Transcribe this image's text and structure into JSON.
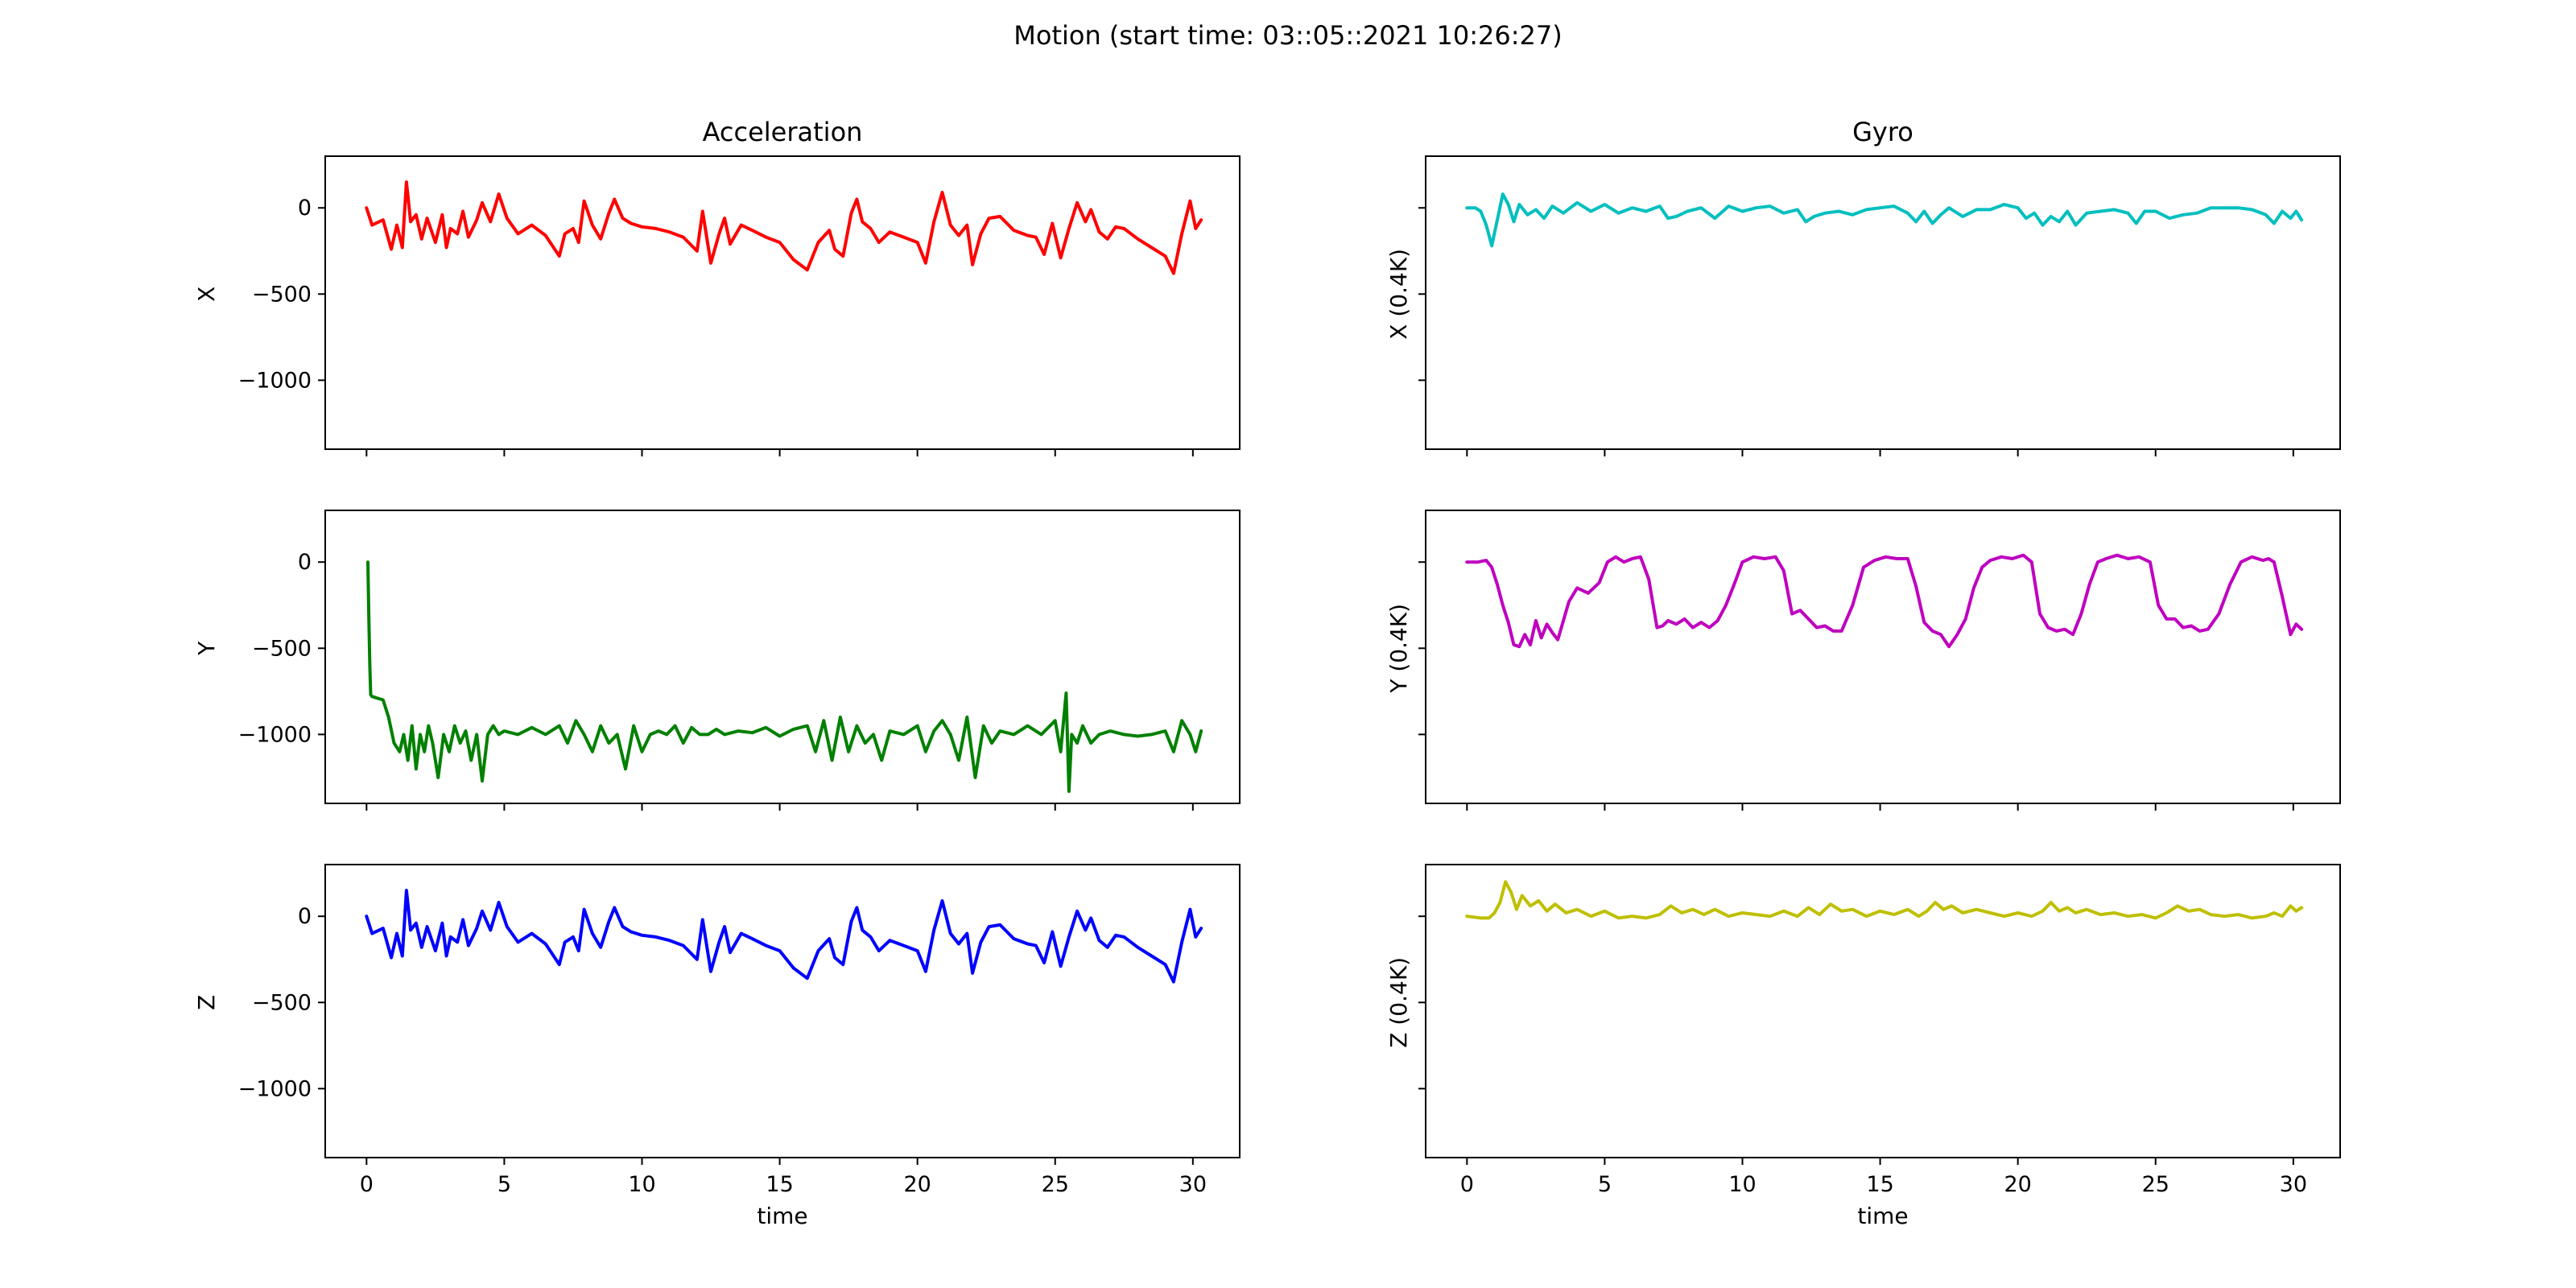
{
  "figure": {
    "suptitle": "Motion (start time: 03::05::2021 10:26:27)",
    "column_titles": [
      "Acceleration",
      "Gyro"
    ],
    "xlabel": "time"
  },
  "chart_data": [
    {
      "type": "line",
      "panel": "acc-x",
      "ylabel": "X",
      "color": "#ff0000",
      "xlim": [
        -1.5,
        31.7
      ],
      "ylim": [
        -1400,
        300
      ],
      "xticks": [
        0,
        5,
        10,
        15,
        20,
        25,
        30
      ],
      "yticks": [
        0,
        -500,
        -1000
      ],
      "ytick_labels": [
        "0",
        "−500",
        "−1000"
      ],
      "show_xtick_labels": false,
      "x": [
        0,
        0.2,
        0.6,
        0.9,
        1.1,
        1.3,
        1.45,
        1.6,
        1.8,
        2.0,
        2.2,
        2.5,
        2.75,
        2.9,
        3.05,
        3.3,
        3.5,
        3.7,
        4.0,
        4.2,
        4.5,
        4.8,
        5.1,
        5.5,
        6.0,
        6.5,
        7.0,
        7.2,
        7.5,
        7.7,
        7.9,
        8.2,
        8.5,
        8.8,
        9.0,
        9.3,
        9.6,
        10.0,
        10.5,
        11.0,
        11.5,
        12.0,
        12.2,
        12.5,
        12.8,
        13.0,
        13.2,
        13.6,
        14.0,
        14.5,
        15.0,
        15.5,
        16.0,
        16.4,
        16.8,
        17.0,
        17.3,
        17.6,
        17.8,
        18.0,
        18.3,
        18.6,
        19.0,
        19.5,
        20.0,
        20.3,
        20.6,
        20.9,
        21.2,
        21.5,
        21.8,
        22.0,
        22.3,
        22.6,
        23.0,
        23.5,
        24.0,
        24.3,
        24.6,
        24.9,
        25.2,
        25.5,
        25.8,
        26.1,
        26.3,
        26.6,
        26.9,
        27.2,
        27.5,
        28.0,
        28.5,
        29.0,
        29.3,
        29.6,
        29.9,
        30.1,
        30.3
      ],
      "y": [
        0,
        -100,
        -70,
        -240,
        -100,
        -230,
        150,
        -80,
        -40,
        -180,
        -60,
        -200,
        -40,
        -230,
        -120,
        -150,
        -20,
        -170,
        -70,
        30,
        -80,
        80,
        -60,
        -150,
        -100,
        -160,
        -280,
        -150,
        -120,
        -200,
        40,
        -100,
        -180,
        -30,
        50,
        -60,
        -90,
        -110,
        -120,
        -140,
        -170,
        -250,
        -20,
        -320,
        -150,
        -60,
        -210,
        -100,
        -130,
        -170,
        -200,
        -300,
        -360,
        -200,
        -130,
        -240,
        -280,
        -30,
        50,
        -80,
        -120,
        -200,
        -140,
        -170,
        -200,
        -320,
        -80,
        90,
        -100,
        -160,
        -100,
        -330,
        -150,
        -60,
        -50,
        -130,
        -160,
        -170,
        -270,
        -90,
        -290,
        -120,
        30,
        -80,
        -10,
        -140,
        -180,
        -110,
        -120,
        -180,
        -230,
        -280,
        -380,
        -150,
        40,
        -120,
        -70
      ]
    },
    {
      "type": "line",
      "panel": "acc-y",
      "ylabel": "Y",
      "color": "#008000",
      "xlim": [
        -1.5,
        31.7
      ],
      "ylim": [
        -1400,
        300
      ],
      "xticks": [
        0,
        5,
        10,
        15,
        20,
        25,
        30
      ],
      "yticks": [
        0,
        -500,
        -1000
      ],
      "ytick_labels": [
        "0",
        "−500",
        "−1000"
      ],
      "show_xtick_labels": false,
      "x": [
        0.05,
        0.08,
        0.12,
        0.15,
        0.2,
        0.4,
        0.6,
        0.8,
        1.0,
        1.2,
        1.35,
        1.5,
        1.65,
        1.8,
        1.95,
        2.1,
        2.25,
        2.4,
        2.6,
        2.8,
        3.0,
        3.2,
        3.4,
        3.6,
        3.8,
        4.0,
        4.2,
        4.4,
        4.6,
        4.8,
        5.0,
        5.5,
        6.0,
        6.5,
        7.0,
        7.3,
        7.6,
        7.9,
        8.2,
        8.5,
        8.8,
        9.1,
        9.4,
        9.7,
        10.0,
        10.3,
        10.6,
        10.9,
        11.2,
        11.5,
        11.8,
        12.1,
        12.4,
        12.7,
        13.0,
        13.5,
        14.0,
        14.5,
        15.0,
        15.5,
        16.0,
        16.3,
        16.6,
        16.9,
        17.2,
        17.5,
        17.8,
        18.1,
        18.4,
        18.7,
        19.0,
        19.5,
        20.0,
        20.3,
        20.6,
        20.9,
        21.2,
        21.5,
        21.8,
        22.1,
        22.4,
        22.7,
        23.0,
        23.5,
        24.0,
        24.5,
        25.0,
        25.2,
        25.4,
        25.5,
        25.6,
        25.8,
        26.0,
        26.3,
        26.6,
        27.0,
        27.5,
        28.0,
        28.5,
        29.0,
        29.3,
        29.6,
        29.9,
        30.1,
        30.3
      ],
      "y": [
        0,
        -300,
        -600,
        -770,
        -780,
        -790,
        -800,
        -900,
        -1050,
        -1100,
        -1000,
        -1150,
        -950,
        -1200,
        -1000,
        -1100,
        -950,
        -1050,
        -1250,
        -1000,
        -1100,
        -950,
        -1050,
        -980,
        -1150,
        -1000,
        -1270,
        -1000,
        -950,
        -1000,
        -980,
        -1000,
        -960,
        -1000,
        -950,
        -1050,
        -920,
        -1000,
        -1100,
        -950,
        -1050,
        -1000,
        -1200,
        -950,
        -1100,
        -1000,
        -980,
        -1000,
        -950,
        -1050,
        -960,
        -1000,
        -1000,
        -970,
        -1000,
        -980,
        -990,
        -960,
        -1010,
        -970,
        -950,
        -1100,
        -920,
        -1150,
        -900,
        -1100,
        -950,
        -1050,
        -1000,
        -1150,
        -980,
        -1000,
        -950,
        -1100,
        -980,
        -920,
        -1000,
        -1150,
        -900,
        -1250,
        -950,
        -1050,
        -980,
        -1000,
        -950,
        -1000,
        -920,
        -1100,
        -760,
        -1330,
        -1000,
        -1050,
        -950,
        -1050,
        -1000,
        -980,
        -1000,
        -1010,
        -1000,
        -980,
        -1100,
        -920,
        -1000,
        -1100,
        -980
      ]
    },
    {
      "type": "line",
      "panel": "acc-z",
      "ylabel": "Z",
      "color": "#0000ff",
      "xlim": [
        -1.5,
        31.7
      ],
      "ylim": [
        -1400,
        300
      ],
      "xticks": [
        0,
        5,
        10,
        15,
        20,
        25,
        30
      ],
      "yticks": [
        0,
        -500,
        -1000
      ],
      "ytick_labels": [
        "0",
        "−500",
        "−1000"
      ],
      "show_xtick_labels": true,
      "x": [
        0,
        0.2,
        0.6,
        0.9,
        1.1,
        1.3,
        1.45,
        1.6,
        1.8,
        2.0,
        2.2,
        2.5,
        2.75,
        2.9,
        3.05,
        3.3,
        3.5,
        3.7,
        4.0,
        4.2,
        4.5,
        4.8,
        5.1,
        5.5,
        6.0,
        6.5,
        7.0,
        7.2,
        7.5,
        7.7,
        7.9,
        8.2,
        8.5,
        8.8,
        9.0,
        9.3,
        9.6,
        10.0,
        10.5,
        11.0,
        11.5,
        12.0,
        12.2,
        12.5,
        12.8,
        13.0,
        13.2,
        13.6,
        14.0,
        14.5,
        15.0,
        15.5,
        16.0,
        16.4,
        16.8,
        17.0,
        17.3,
        17.6,
        17.8,
        18.0,
        18.3,
        18.6,
        19.0,
        19.5,
        20.0,
        20.3,
        20.6,
        20.9,
        21.2,
        21.5,
        21.8,
        22.0,
        22.3,
        22.6,
        23.0,
        23.5,
        24.0,
        24.3,
        24.6,
        24.9,
        25.2,
        25.5,
        25.8,
        26.1,
        26.3,
        26.6,
        26.9,
        27.2,
        27.5,
        28.0,
        28.5,
        29.0,
        29.3,
        29.6,
        29.9,
        30.1,
        30.3
      ],
      "y": [
        0,
        -100,
        -70,
        -240,
        -100,
        -230,
        150,
        -80,
        -40,
        -180,
        -60,
        -200,
        -40,
        -230,
        -120,
        -150,
        -20,
        -170,
        -70,
        30,
        -80,
        80,
        -60,
        -150,
        -100,
        -160,
        -280,
        -150,
        -120,
        -200,
        40,
        -100,
        -180,
        -30,
        50,
        -60,
        -90,
        -110,
        -120,
        -140,
        -170,
        -250,
        -20,
        -320,
        -150,
        -60,
        -210,
        -100,
        -130,
        -170,
        -200,
        -300,
        -360,
        -200,
        -130,
        -240,
        -280,
        -30,
        50,
        -80,
        -120,
        -200,
        -140,
        -170,
        -200,
        -320,
        -80,
        90,
        -100,
        -160,
        -100,
        -330,
        -150,
        -60,
        -50,
        -130,
        -160,
        -170,
        -270,
        -90,
        -290,
        -120,
        30,
        -80,
        -10,
        -140,
        -180,
        -110,
        -120,
        -180,
        -230,
        -280,
        -380,
        -150,
        40,
        -120,
        -70
      ]
    },
    {
      "type": "line",
      "panel": "gyro-x",
      "ylabel": "X (0.4K)",
      "color": "#00bfbf",
      "xlim": [
        -1.5,
        31.7
      ],
      "ylim": [
        -1400,
        300
      ],
      "xticks": [
        0,
        5,
        10,
        15,
        20,
        25,
        30
      ],
      "yticks": [
        0,
        -500,
        -1000
      ],
      "ytick_labels": [
        "",
        "",
        ""
      ],
      "show_xtick_labels": false,
      "x": [
        0,
        0.3,
        0.5,
        0.7,
        0.9,
        1.1,
        1.3,
        1.5,
        1.7,
        1.9,
        2.2,
        2.5,
        2.8,
        3.1,
        3.5,
        4.0,
        4.5,
        5.0,
        5.5,
        6.0,
        6.5,
        7.0,
        7.3,
        7.6,
        8.0,
        8.5,
        9.0,
        9.5,
        10.0,
        10.5,
        11.0,
        11.5,
        12.0,
        12.3,
        12.6,
        13.0,
        13.5,
        14.0,
        14.5,
        15.0,
        15.5,
        16.0,
        16.3,
        16.6,
        16.9,
        17.2,
        17.5,
        18.0,
        18.5,
        19.0,
        19.5,
        20.0,
        20.3,
        20.6,
        20.9,
        21.2,
        21.5,
        21.8,
        22.1,
        22.5,
        23.0,
        23.5,
        24.0,
        24.3,
        24.6,
        25.0,
        25.5,
        26.0,
        26.5,
        27.0,
        27.5,
        28.0,
        28.5,
        29.0,
        29.3,
        29.6,
        29.9,
        30.1,
        30.3
      ],
      "y": [
        0,
        0,
        -20,
        -100,
        -220,
        -70,
        80,
        20,
        -80,
        20,
        -40,
        -10,
        -60,
        10,
        -30,
        30,
        -20,
        20,
        -30,
        0,
        -20,
        10,
        -60,
        -50,
        -20,
        0,
        -60,
        10,
        -20,
        0,
        10,
        -30,
        -10,
        -80,
        -50,
        -30,
        -20,
        -40,
        -10,
        0,
        10,
        -30,
        -80,
        -20,
        -90,
        -40,
        0,
        -50,
        -10,
        -10,
        20,
        0,
        -60,
        -30,
        -100,
        -50,
        -80,
        -20,
        -100,
        -30,
        -20,
        -10,
        -30,
        -90,
        -20,
        -20,
        -60,
        -40,
        -30,
        0,
        0,
        0,
        -10,
        -40,
        -90,
        -20,
        -60,
        -20,
        -70
      ]
    },
    {
      "type": "line",
      "panel": "gyro-y",
      "ylabel": "Y (0.4K)",
      "color": "#bf00bf",
      "xlim": [
        -1.5,
        31.7
      ],
      "ylim": [
        -1400,
        300
      ],
      "xticks": [
        0,
        5,
        10,
        15,
        20,
        25,
        30
      ],
      "yticks": [
        0,
        -500,
        -1000
      ],
      "ytick_labels": [
        "",
        "",
        ""
      ],
      "show_xtick_labels": false,
      "x": [
        0,
        0.4,
        0.7,
        0.9,
        1.1,
        1.3,
        1.5,
        1.7,
        1.9,
        2.1,
        2.3,
        2.5,
        2.7,
        2.9,
        3.1,
        3.3,
        3.5,
        3.7,
        4.0,
        4.4,
        4.8,
        5.1,
        5.4,
        5.7,
        6.0,
        6.3,
        6.6,
        6.9,
        7.1,
        7.3,
        7.6,
        7.9,
        8.2,
        8.5,
        8.8,
        9.1,
        9.4,
        9.7,
        10.0,
        10.4,
        10.8,
        11.2,
        11.5,
        11.8,
        12.1,
        12.4,
        12.7,
        13.0,
        13.3,
        13.6,
        14.0,
        14.4,
        14.8,
        15.2,
        15.6,
        16.0,
        16.3,
        16.6,
        16.9,
        17.2,
        17.5,
        17.8,
        18.1,
        18.4,
        18.7,
        19.0,
        19.4,
        19.8,
        20.2,
        20.5,
        20.8,
        21.1,
        21.4,
        21.7,
        22.0,
        22.3,
        22.6,
        22.9,
        23.2,
        23.6,
        24.0,
        24.4,
        24.8,
        25.1,
        25.4,
        25.7,
        26.0,
        26.3,
        26.6,
        26.9,
        27.3,
        27.7,
        28.1,
        28.5,
        28.9,
        29.1,
        29.3,
        29.6,
        29.9,
        30.1,
        30.3
      ],
      "y": [
        0,
        0,
        10,
        -30,
        -130,
        -250,
        -350,
        -480,
        -490,
        -420,
        -480,
        -340,
        -440,
        -360,
        -410,
        -450,
        -340,
        -230,
        -150,
        -180,
        -120,
        0,
        30,
        0,
        20,
        30,
        -100,
        -380,
        -370,
        -340,
        -360,
        -330,
        -380,
        -350,
        -380,
        -340,
        -250,
        -130,
        0,
        30,
        20,
        30,
        -50,
        -300,
        -280,
        -330,
        -380,
        -370,
        -400,
        -400,
        -250,
        -30,
        10,
        30,
        20,
        20,
        -140,
        -350,
        -400,
        -420,
        -490,
        -420,
        -330,
        -150,
        -30,
        10,
        30,
        20,
        40,
        0,
        -300,
        -380,
        -400,
        -390,
        -420,
        -300,
        -130,
        0,
        20,
        40,
        20,
        30,
        0,
        -250,
        -330,
        -330,
        -380,
        -370,
        -400,
        -390,
        -300,
        -130,
        0,
        30,
        10,
        20,
        0,
        -200,
        -420,
        -360,
        -390
      ]
    },
    {
      "type": "line",
      "panel": "gyro-z",
      "ylabel": "Z (0.4K)",
      "color": "#bfbf00",
      "xlim": [
        -1.5,
        31.7
      ],
      "ylim": [
        -1400,
        300
      ],
      "xticks": [
        0,
        5,
        10,
        15,
        20,
        25,
        30
      ],
      "yticks": [
        0,
        -500,
        -1000
      ],
      "ytick_labels": [
        "",
        "",
        ""
      ],
      "show_xtick_labels": true,
      "x": [
        0,
        0.5,
        0.8,
        1.0,
        1.2,
        1.4,
        1.6,
        1.8,
        2.0,
        2.3,
        2.6,
        2.9,
        3.2,
        3.6,
        4.0,
        4.5,
        5.0,
        5.5,
        6.0,
        6.5,
        7.0,
        7.4,
        7.8,
        8.2,
        8.6,
        9.0,
        9.5,
        10.0,
        10.5,
        11.0,
        11.5,
        12.0,
        12.4,
        12.8,
        13.2,
        13.6,
        14.0,
        14.5,
        15.0,
        15.5,
        16.0,
        16.4,
        16.7,
        17.0,
        17.3,
        17.6,
        18.0,
        18.5,
        19.0,
        19.5,
        20.0,
        20.5,
        20.9,
        21.2,
        21.5,
        21.8,
        22.1,
        22.5,
        23.0,
        23.5,
        24.0,
        24.5,
        25.0,
        25.4,
        25.8,
        26.2,
        26.6,
        27.0,
        27.5,
        28.0,
        28.5,
        29.0,
        29.3,
        29.6,
        29.9,
        30.1,
        30.3
      ],
      "y": [
        0,
        -10,
        -10,
        20,
        80,
        200,
        140,
        40,
        120,
        60,
        90,
        30,
        70,
        20,
        40,
        0,
        30,
        -10,
        0,
        -10,
        10,
        60,
        20,
        40,
        10,
        40,
        0,
        20,
        10,
        0,
        30,
        0,
        50,
        10,
        70,
        30,
        40,
        0,
        30,
        10,
        40,
        0,
        30,
        80,
        40,
        60,
        20,
        40,
        20,
        0,
        20,
        0,
        30,
        80,
        30,
        50,
        20,
        40,
        10,
        20,
        0,
        10,
        -10,
        20,
        60,
        30,
        40,
        10,
        0,
        10,
        -10,
        0,
        20,
        0,
        60,
        30,
        50
      ]
    }
  ]
}
